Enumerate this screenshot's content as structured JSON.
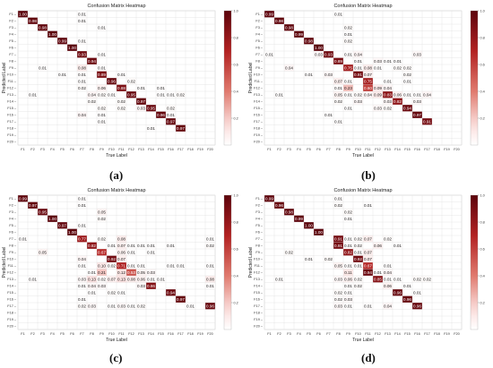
{
  "chart_data": [
    {
      "type": "heatmap",
      "title": "Confusion Matrix Heatmap",
      "xlabel": "True Label",
      "ylabel": "Predicted Label",
      "categories": [
        "F1",
        "F2",
        "F3",
        "F4",
        "F5",
        "F6",
        "F7",
        "F8",
        "F9",
        "F10",
        "F11",
        "F12",
        "F13",
        "F14",
        "F15",
        "F16",
        "F17",
        "F18",
        "F19",
        "F20"
      ],
      "colorbar_ticks": [
        "1.0",
        "0.8",
        "0.6",
        "0.4",
        "0.2"
      ],
      "vrange": [
        0,
        1
      ],
      "panel_label": "(a)",
      "cells": [
        [
          0,
          0,
          1.0
        ],
        [
          0,
          6,
          0.01
        ],
        [
          1,
          1,
          0.98
        ],
        [
          1,
          6,
          0.01
        ],
        [
          2,
          2,
          0.98
        ],
        [
          2,
          8,
          0.01
        ],
        [
          3,
          3,
          1.0
        ],
        [
          4,
          4,
          0.99
        ],
        [
          4,
          6,
          0.01
        ],
        [
          5,
          5,
          1.0
        ],
        [
          6,
          6,
          0.93
        ],
        [
          6,
          8,
          0.01
        ],
        [
          7,
          7,
          0.94
        ],
        [
          8,
          2,
          0.01
        ],
        [
          8,
          6,
          0.08
        ],
        [
          8,
          8,
          0.01
        ],
        [
          9,
          4,
          0.01
        ],
        [
          9,
          6,
          0.01
        ],
        [
          9,
          8,
          0.89
        ],
        [
          9,
          10,
          0.01
        ],
        [
          10,
          6,
          0.01
        ],
        [
          10,
          9,
          0.96
        ],
        [
          10,
          11,
          0.02
        ],
        [
          11,
          6,
          0.02
        ],
        [
          11,
          8,
          0.06
        ],
        [
          11,
          10,
          0.88
        ],
        [
          11,
          12,
          0.01
        ],
        [
          11,
          14,
          0.01
        ],
        [
          12,
          1,
          0.01
        ],
        [
          12,
          7,
          0.04
        ],
        [
          12,
          8,
          0.02
        ],
        [
          12,
          9,
          0.01
        ],
        [
          12,
          11,
          0.95
        ],
        [
          12,
          14,
          0.01
        ],
        [
          12,
          15,
          0.01
        ],
        [
          12,
          16,
          0.02
        ],
        [
          13,
          7,
          0.02
        ],
        [
          13,
          10,
          0.02
        ],
        [
          13,
          12,
          0.97
        ],
        [
          14,
          8,
          0.02
        ],
        [
          14,
          10,
          0.02
        ],
        [
          14,
          12,
          0.03
        ],
        [
          14,
          13,
          0.95
        ],
        [
          14,
          15,
          0.02
        ],
        [
          15,
          6,
          0.04
        ],
        [
          15,
          8,
          0.01
        ],
        [
          15,
          14,
          0.96
        ],
        [
          15,
          15,
          0.01
        ],
        [
          16,
          8,
          0.01
        ],
        [
          16,
          15,
          0.97
        ],
        [
          17,
          13,
          0.01
        ],
        [
          17,
          16,
          0.97
        ]
      ]
    },
    {
      "type": "heatmap",
      "title": "Confusion Matrix Heatmap",
      "xlabel": "True Label",
      "ylabel": "Predicted Label",
      "categories": [
        "F1",
        "F2",
        "F3",
        "F4",
        "F5",
        "F6",
        "F7",
        "F8",
        "F9",
        "F10",
        "F11",
        "F12",
        "F13",
        "F14",
        "F15",
        "F16",
        "F17",
        "F18",
        "F19",
        "F20"
      ],
      "colorbar_ticks": [
        "1.0",
        "0.8",
        "0.6",
        "0.4",
        "0.2"
      ],
      "vrange": [
        0,
        1
      ],
      "panel_label": "(b)",
      "cells": [
        [
          0,
          0,
          0.99
        ],
        [
          0,
          7,
          0.01
        ],
        [
          1,
          1,
          0.98
        ],
        [
          2,
          2,
          0.98
        ],
        [
          2,
          8,
          0.02
        ],
        [
          3,
          3,
          0.99
        ],
        [
          3,
          8,
          0.01
        ],
        [
          4,
          4,
          0.98
        ],
        [
          4,
          8,
          0.02
        ],
        [
          5,
          5,
          1.0
        ],
        [
          6,
          0,
          0.01
        ],
        [
          6,
          5,
          0.03
        ],
        [
          6,
          6,
          0.93
        ],
        [
          6,
          8,
          0.01
        ],
        [
          6,
          9,
          0.04
        ],
        [
          6,
          15,
          0.03
        ],
        [
          7,
          7,
          0.89
        ],
        [
          7,
          9,
          0.01
        ],
        [
          7,
          11,
          0.03
        ],
        [
          7,
          12,
          0.01
        ],
        [
          7,
          13,
          0.01
        ],
        [
          8,
          2,
          0.04
        ],
        [
          8,
          8,
          0.75
        ],
        [
          8,
          9,
          0.01
        ],
        [
          8,
          10,
          0.08
        ],
        [
          8,
          11,
          0.01
        ],
        [
          8,
          13,
          0.02
        ],
        [
          8,
          14,
          0.02
        ],
        [
          9,
          4,
          0.01
        ],
        [
          9,
          6,
          0.03
        ],
        [
          9,
          9,
          0.91
        ],
        [
          9,
          10,
          0.07
        ],
        [
          9,
          14,
          0.02
        ],
        [
          10,
          7,
          0.07
        ],
        [
          10,
          8,
          0.01
        ],
        [
          10,
          10,
          0.75
        ],
        [
          10,
          12,
          0.01
        ],
        [
          10,
          14,
          0.01
        ],
        [
          11,
          7,
          0.01
        ],
        [
          11,
          8,
          0.23
        ],
        [
          11,
          10,
          0.6
        ],
        [
          11,
          11,
          0.09
        ],
        [
          11,
          12,
          0.04
        ],
        [
          12,
          1,
          0.01
        ],
        [
          12,
          7,
          0.05
        ],
        [
          12,
          8,
          0.01
        ],
        [
          12,
          9,
          0.02
        ],
        [
          12,
          10,
          0.04
        ],
        [
          12,
          11,
          0.09
        ],
        [
          12,
          12,
          0.83
        ],
        [
          12,
          13,
          0.06
        ],
        [
          12,
          14,
          0.01
        ],
        [
          12,
          15,
          0.01
        ],
        [
          12,
          16,
          0.04
        ],
        [
          13,
          7,
          0.02
        ],
        [
          13,
          9,
          0.03
        ],
        [
          13,
          12,
          0.03
        ],
        [
          13,
          13,
          0.82
        ],
        [
          13,
          15,
          0.03
        ],
        [
          14,
          8,
          0.01
        ],
        [
          14,
          11,
          0.03
        ],
        [
          14,
          12,
          0.02
        ],
        [
          14,
          14,
          0.94
        ],
        [
          15,
          6,
          0.01
        ],
        [
          15,
          15,
          0.97
        ],
        [
          16,
          7,
          0.01
        ],
        [
          16,
          16,
          0.91
        ]
      ]
    },
    {
      "type": "heatmap",
      "title": "Confusion Matrix Heatmap",
      "xlabel": "True Label",
      "ylabel": "Predicted Label",
      "categories": [
        "F1",
        "F2",
        "F3",
        "F4",
        "F5",
        "F6",
        "F7",
        "F8",
        "F9",
        "F10",
        "F11",
        "F12",
        "F13",
        "F14",
        "F15",
        "F16",
        "F17",
        "F18",
        "F19",
        "F20"
      ],
      "colorbar_ticks": [
        "1.0",
        "0.8",
        "0.6",
        "0.4",
        "0.2"
      ],
      "vrange": [
        0,
        1
      ],
      "panel_label": "(c)",
      "cells": [
        [
          0,
          0,
          0.99
        ],
        [
          0,
          6,
          0.01
        ],
        [
          1,
          1,
          0.97
        ],
        [
          1,
          6,
          0.01
        ],
        [
          2,
          2,
          0.95
        ],
        [
          2,
          8,
          0.05
        ],
        [
          3,
          3,
          1.0
        ],
        [
          3,
          8,
          0.02
        ],
        [
          4,
          4,
          0.97
        ],
        [
          4,
          6,
          0.01
        ],
        [
          5,
          5,
          1.0
        ],
        [
          6,
          0,
          0.01
        ],
        [
          6,
          6,
          0.77
        ],
        [
          6,
          8,
          0.02
        ],
        [
          6,
          10,
          0.08
        ],
        [
          6,
          19,
          0.01
        ],
        [
          7,
          7,
          0.82
        ],
        [
          7,
          9,
          0.01
        ],
        [
          7,
          10,
          0.07
        ],
        [
          7,
          11,
          0.01
        ],
        [
          7,
          12,
          0.01
        ],
        [
          7,
          13,
          0.01
        ],
        [
          7,
          15,
          0.01
        ],
        [
          7,
          19,
          0.02
        ],
        [
          8,
          2,
          0.05
        ],
        [
          8,
          8,
          0.67
        ],
        [
          8,
          10,
          0.06
        ],
        [
          8,
          11,
          0.01
        ],
        [
          8,
          13,
          0.01
        ],
        [
          9,
          6,
          0.04
        ],
        [
          9,
          9,
          0.92
        ],
        [
          9,
          10,
          0.07
        ],
        [
          10,
          6,
          0.01
        ],
        [
          10,
          8,
          0.1
        ],
        [
          10,
          9,
          0.02
        ],
        [
          10,
          10,
          0.71
        ],
        [
          10,
          11,
          0.01
        ],
        [
          10,
          12,
          0.01
        ],
        [
          10,
          15,
          0.01
        ],
        [
          10,
          16,
          0.01
        ],
        [
          10,
          19,
          0.01
        ],
        [
          11,
          7,
          0.01
        ],
        [
          11,
          8,
          0.21
        ],
        [
          11,
          10,
          0.12
        ],
        [
          11,
          11,
          0.53
        ],
        [
          11,
          12,
          0.05
        ],
        [
          11,
          13,
          0.03
        ],
        [
          12,
          1,
          0.01
        ],
        [
          12,
          6,
          0.03
        ],
        [
          12,
          7,
          0.13
        ],
        [
          12,
          8,
          0.02
        ],
        [
          12,
          9,
          0.07
        ],
        [
          12,
          10,
          0.13
        ],
        [
          12,
          11,
          0.08
        ],
        [
          12,
          12,
          0.06
        ],
        [
          12,
          13,
          0.01
        ],
        [
          12,
          14,
          0.01
        ],
        [
          12,
          19,
          0.08
        ],
        [
          13,
          6,
          0.01
        ],
        [
          13,
          7,
          0.04
        ],
        [
          13,
          8,
          0.03
        ],
        [
          13,
          12,
          0.03
        ],
        [
          13,
          13,
          0.86
        ],
        [
          13,
          19,
          0.01
        ],
        [
          14,
          7,
          0.01
        ],
        [
          14,
          9,
          0.02
        ],
        [
          14,
          10,
          0.01
        ],
        [
          14,
          15,
          0.94
        ],
        [
          15,
          6,
          0.01
        ],
        [
          15,
          16,
          0.97
        ],
        [
          16,
          6,
          0.02
        ],
        [
          16,
          7,
          0.03
        ],
        [
          16,
          9,
          0.01
        ],
        [
          16,
          10,
          0.03
        ],
        [
          16,
          11,
          0.01
        ],
        [
          16,
          12,
          0.02
        ],
        [
          16,
          17,
          0.01
        ],
        [
          16,
          19,
          0.96
        ]
      ]
    },
    {
      "type": "heatmap",
      "title": "Confusion Matrix Heatmap",
      "xlabel": "True Label",
      "ylabel": "Predicted Label",
      "categories": [
        "F1",
        "F2",
        "F3",
        "F4",
        "F5",
        "F6",
        "F7",
        "F8",
        "F9",
        "F10",
        "F11",
        "F12",
        "F13",
        "F14",
        "F15",
        "F16",
        "F17",
        "F18",
        "F19",
        "F20"
      ],
      "colorbar_ticks": [
        "1.0",
        "0.8",
        "0.6",
        "0.4",
        "0.2"
      ],
      "vrange": [
        0,
        1
      ],
      "panel_label": "(d)",
      "cells": [
        [
          0,
          0,
          0.99
        ],
        [
          0,
          7,
          0.01
        ],
        [
          1,
          1,
          0.96
        ],
        [
          1,
          7,
          0.02
        ],
        [
          1,
          10,
          0.01
        ],
        [
          2,
          2,
          0.98
        ],
        [
          2,
          8,
          0.02
        ],
        [
          3,
          3,
          0.99
        ],
        [
          3,
          8,
          0.01
        ],
        [
          4,
          4,
          1.0
        ],
        [
          5,
          5,
          1.0
        ],
        [
          6,
          7,
          0.91
        ],
        [
          6,
          8,
          0.01
        ],
        [
          6,
          9,
          0.02
        ],
        [
          6,
          10,
          0.07
        ],
        [
          6,
          12,
          0.02
        ],
        [
          7,
          7,
          0.91
        ],
        [
          7,
          8,
          0.01
        ],
        [
          7,
          9,
          0.02
        ],
        [
          7,
          11,
          0.06
        ],
        [
          7,
          13,
          0.01
        ],
        [
          8,
          2,
          0.02
        ],
        [
          8,
          8,
          0.82
        ],
        [
          8,
          9,
          0.01
        ],
        [
          8,
          10,
          0.07
        ],
        [
          9,
          4,
          0.01
        ],
        [
          9,
          6,
          0.02
        ],
        [
          9,
          9,
          0.92
        ],
        [
          9,
          10,
          0.07
        ],
        [
          10,
          7,
          0.05
        ],
        [
          10,
          8,
          0.01
        ],
        [
          10,
          9,
          0.01
        ],
        [
          10,
          10,
          0.67
        ],
        [
          10,
          12,
          0.01
        ],
        [
          11,
          8,
          0.11
        ],
        [
          11,
          10,
          0.94
        ],
        [
          11,
          11,
          0.01
        ],
        [
          11,
          12,
          0.04
        ],
        [
          12,
          1,
          0.01
        ],
        [
          12,
          7,
          0.03
        ],
        [
          12,
          8,
          0.06
        ],
        [
          12,
          9,
          0.02
        ],
        [
          12,
          11,
          0.85
        ],
        [
          12,
          12,
          0.01
        ],
        [
          12,
          13,
          0.01
        ],
        [
          12,
          15,
          0.02
        ],
        [
          12,
          16,
          0.02
        ],
        [
          13,
          8,
          0.01
        ],
        [
          13,
          9,
          0.02
        ],
        [
          13,
          12,
          0.06
        ],
        [
          13,
          14,
          0.01
        ],
        [
          14,
          7,
          0.02
        ],
        [
          14,
          8,
          0.01
        ],
        [
          14,
          13,
          0.96
        ],
        [
          14,
          15,
          0.01
        ],
        [
          15,
          7,
          0.02
        ],
        [
          15,
          8,
          0.03
        ],
        [
          15,
          14,
          0.96
        ],
        [
          16,
          7,
          0.03
        ],
        [
          16,
          8,
          0.01
        ],
        [
          16,
          10,
          0.01
        ],
        [
          16,
          12,
          0.04
        ],
        [
          16,
          15,
          0.96
        ]
      ]
    }
  ]
}
